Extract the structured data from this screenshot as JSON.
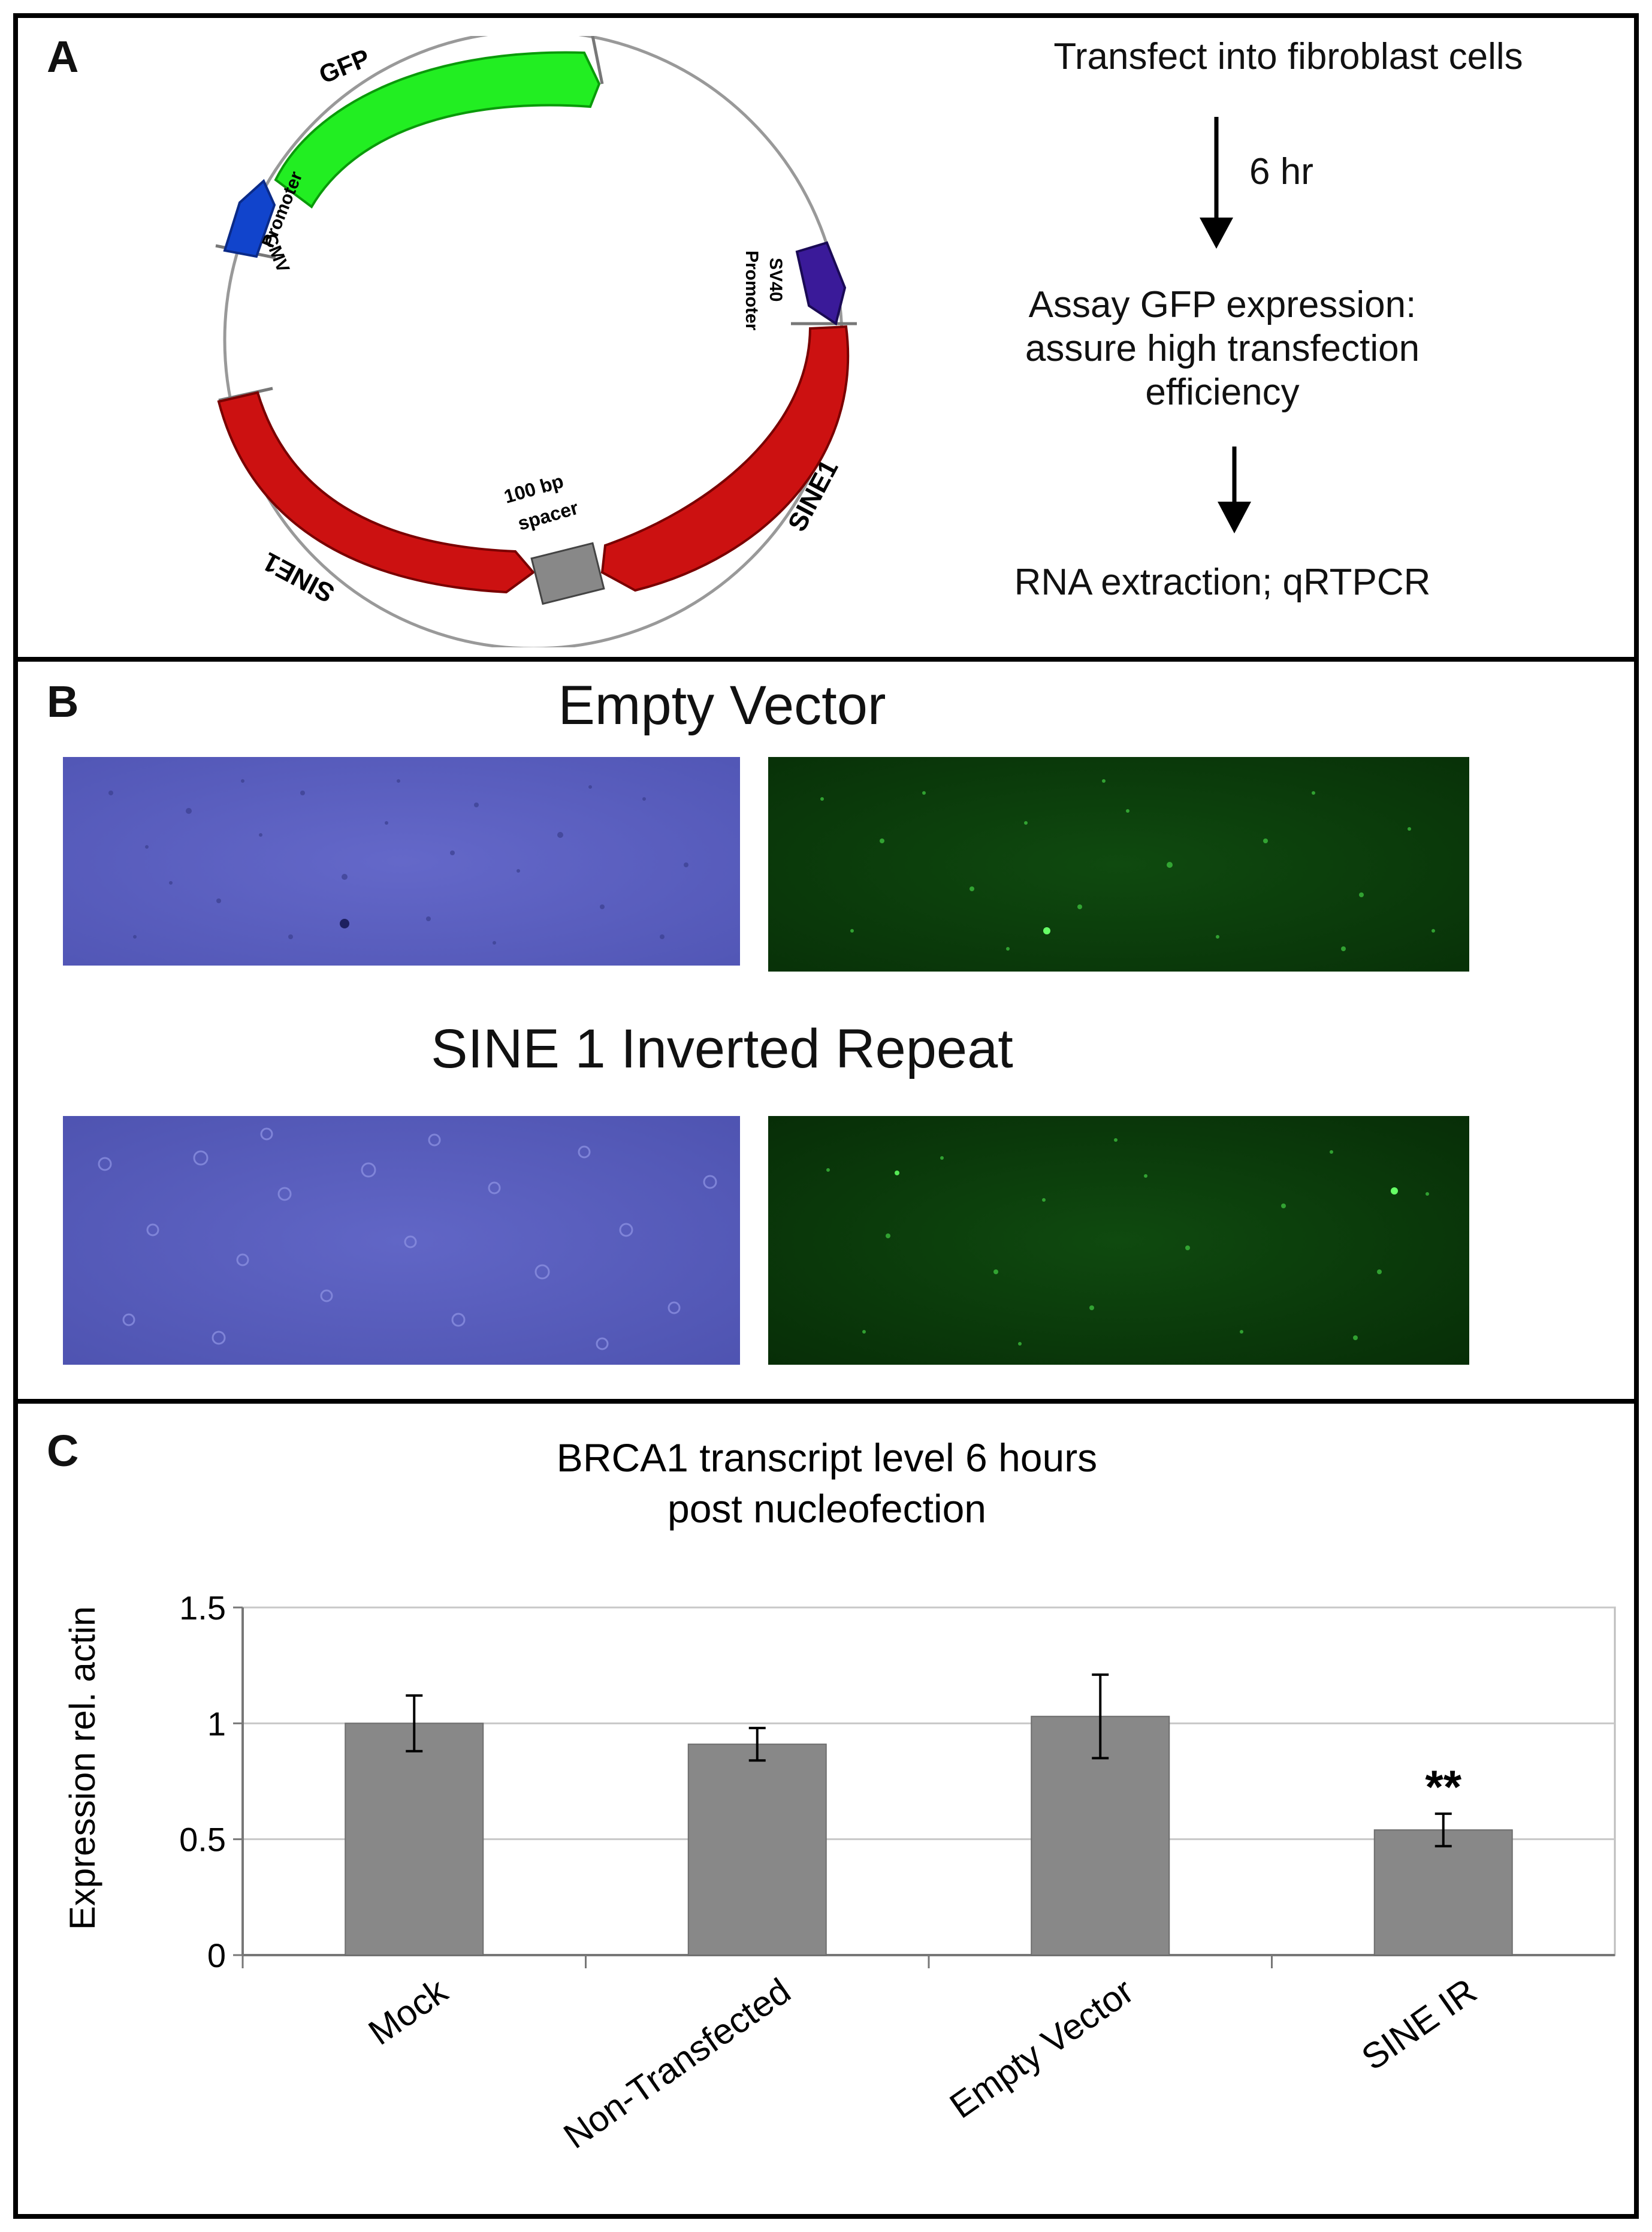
{
  "panels": {
    "a": {
      "letter": "A",
      "plasmid": {
        "gfp": "GFP",
        "cmv_line1": "CMV",
        "cmv_line2": "Promoter",
        "sv40_line1": "SV40",
        "sv40_line2": "Promoter",
        "sine1_right": "SINE1",
        "sine1_left": "SINE1",
        "spacer_line1": "100 bp",
        "spacer_line2": "spacer"
      },
      "flow": {
        "step1": "Transfect into fibroblast cells",
        "time": "6 hr",
        "step2_line1": "Assay GFP expression:",
        "step2_line2": "assure high transfection",
        "step2_line3": "efficiency",
        "step3": "RNA extraction; qRTPCR"
      }
    },
    "b": {
      "letter": "B",
      "title1": "Empty Vector",
      "title2": "SINE 1 Inverted Repeat"
    },
    "c": {
      "letter": "C"
    }
  },
  "colors": {
    "gfp": "#22ee22",
    "cmv": "#1144cc",
    "sv40": "#3a1a99",
    "sine": "#cc1111",
    "spacer": "#888888",
    "bar": "#888888",
    "brightfield": "#5a5fbf",
    "fluorescence": "#0b3d0b"
  },
  "chart_data": {
    "type": "bar",
    "title_line1": "BRCA1 transcript level 6 hours",
    "title_line2": "post nucleofection",
    "ylabel": "Expression rel. actin",
    "xlabel": "",
    "categories": [
      "Mock",
      "Non-Transfected",
      "Empty Vector",
      "SINE IR"
    ],
    "values": [
      1.0,
      0.91,
      1.03,
      0.54
    ],
    "errors": [
      0.12,
      0.07,
      0.18,
      0.07
    ],
    "significance": [
      "",
      "",
      "",
      "**"
    ],
    "ylim": [
      0,
      1.5
    ],
    "yticks": [
      0,
      0.5,
      1,
      1.5
    ],
    "ytick_labels": [
      "0",
      "0.5",
      "1",
      "1.5"
    ],
    "grid": true
  }
}
